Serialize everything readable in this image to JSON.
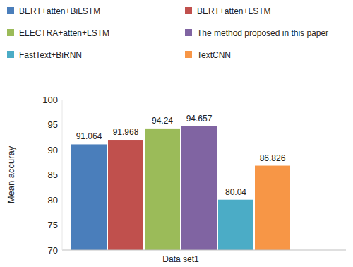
{
  "chart_data": {
    "type": "bar",
    "x_label": "Data set1",
    "y_label": "Mean accuray",
    "categories": [
      "Data set1"
    ],
    "series": [
      {
        "name": "BERT+atten+BiLSTM",
        "color": "#4a7ebb",
        "values": [
          91.064
        ]
      },
      {
        "name": "BERT+atten+LSTM",
        "color": "#c0504d",
        "values": [
          91.968
        ]
      },
      {
        "name": "ELECTRA+atten+LSTM",
        "color": "#9bbb59",
        "values": [
          94.24
        ]
      },
      {
        "name": "The method proposed in this paper",
        "color": "#8064a2",
        "values": [
          94.657
        ]
      },
      {
        "name": "FastText+BiRNN",
        "color": "#4bacc6",
        "values": [
          80.04
        ]
      },
      {
        "name": "TextCNN",
        "color": "#f79646",
        "values": [
          86.826
        ]
      }
    ],
    "ylim": [
      70,
      100
    ],
    "yticks": [
      70,
      75,
      80,
      85,
      90,
      95,
      100
    ],
    "grid": false,
    "legend": "top",
    "data_labels": true
  }
}
